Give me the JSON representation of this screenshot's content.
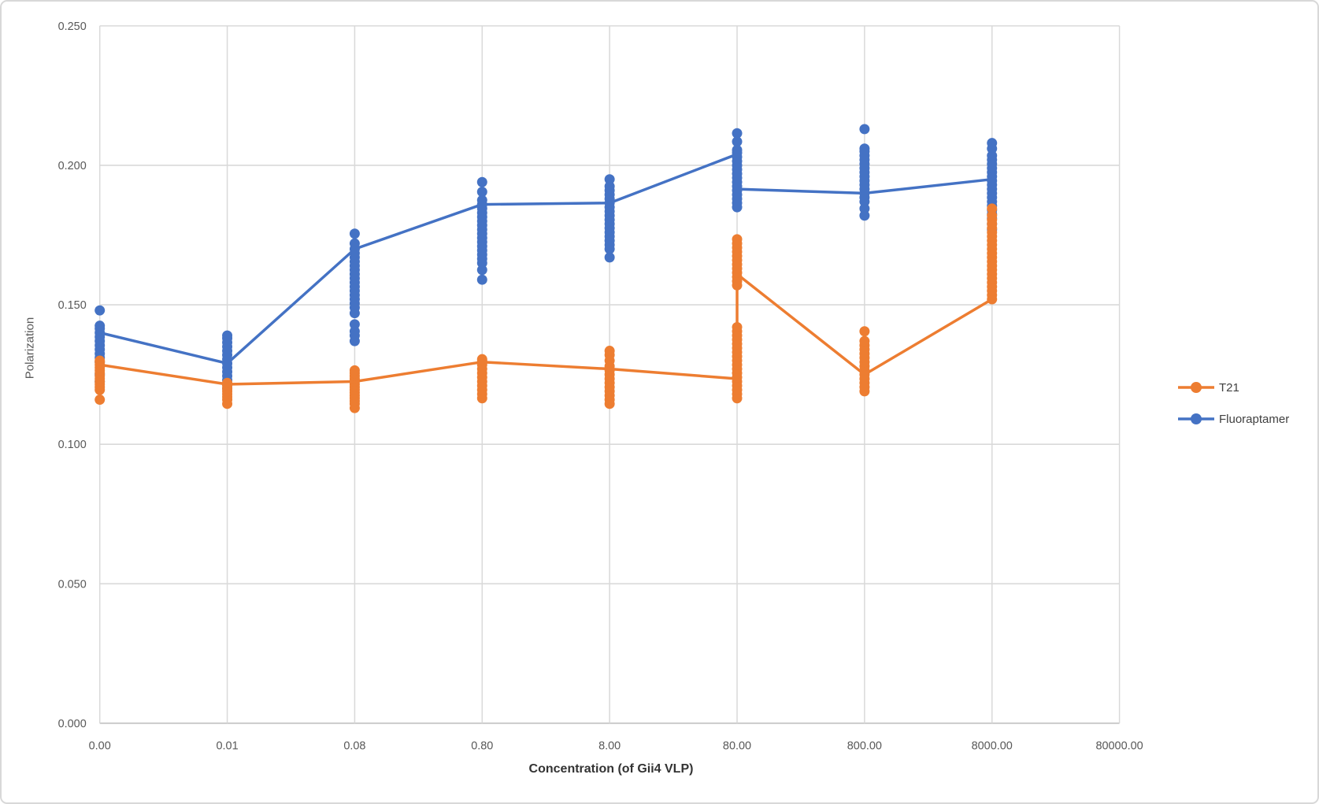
{
  "chart_data": {
    "type": "scatter",
    "xlabel": "Concentration (of Gii4 VLP)",
    "ylabel": "Polarization",
    "x_tick_labels": [
      "0.00",
      "0.01",
      "0.08",
      "0.80",
      "8.00",
      "80.00",
      "800.00",
      "8000.00",
      "80000.00"
    ],
    "y_tick_labels": [
      "0.000",
      "0.050",
      "0.100",
      "0.150",
      "0.200",
      "0.250"
    ],
    "ylim": [
      0,
      0.25
    ],
    "y_tick_step": 0.05,
    "grid": "on",
    "legend_position": "right",
    "colors": {
      "t21": "#ED7D31",
      "fluoraptamer": "#4472C4",
      "gridline": "#D9D9D9",
      "axis_line": "#BFBFBF",
      "tick_text": "#595959"
    },
    "series": [
      {
        "name": "Fluoraptamer",
        "color": "#4472C4",
        "points_by_category": [
          [
            0.1225,
            0.125,
            0.1295,
            0.131,
            0.1325,
            0.134,
            0.1355,
            0.137,
            0.1385,
            0.14,
            0.1415,
            0.1425,
            0.148
          ],
          [
            0.12,
            0.1215,
            0.123,
            0.1245,
            0.126,
            0.1275,
            0.129,
            0.1305,
            0.132,
            0.1335,
            0.135,
            0.1365,
            0.138,
            0.139
          ],
          [
            0.137,
            0.139,
            0.1405,
            0.143,
            0.147,
            0.149,
            0.1505,
            0.152,
            0.1535,
            0.155,
            0.1565,
            0.158,
            0.1595,
            0.161,
            0.1625,
            0.164,
            0.1655,
            0.167,
            0.1685,
            0.17,
            0.172,
            0.1755
          ],
          [
            0.159,
            0.1625,
            0.165,
            0.1665,
            0.168,
            0.1695,
            0.171,
            0.1725,
            0.174,
            0.1755,
            0.177,
            0.1785,
            0.18,
            0.1815,
            0.183,
            0.1845,
            0.186,
            0.1875,
            0.1905,
            0.194
          ],
          [
            0.167,
            0.17,
            0.1715,
            0.173,
            0.1745,
            0.176,
            0.1775,
            0.179,
            0.1805,
            0.182,
            0.1835,
            0.185,
            0.1865,
            0.188,
            0.1895,
            0.191,
            0.1925,
            0.195
          ],
          [
            0.185,
            0.1865,
            0.188,
            0.1895,
            0.191,
            0.1925,
            0.194,
            0.1955,
            0.197,
            0.1985,
            0.2,
            0.2015,
            0.203,
            0.2045,
            0.2055,
            0.2085,
            0.2115
          ],
          [
            0.182,
            0.1845,
            0.187,
            0.1885,
            0.19,
            0.1915,
            0.193,
            0.1945,
            0.196,
            0.1975,
            0.199,
            0.2005,
            0.202,
            0.2035,
            0.205,
            0.206,
            0.213
          ],
          [
            0.177,
            0.179,
            0.181,
            0.1825,
            0.184,
            0.1855,
            0.187,
            0.1885,
            0.19,
            0.1915,
            0.193,
            0.1945,
            0.196,
            0.1975,
            0.199,
            0.2005,
            0.202,
            0.2035,
            0.206,
            0.208
          ]
        ],
        "line_vertices": [
          [
            0,
            0.14
          ],
          [
            1,
            0.129
          ],
          [
            2,
            0.17
          ],
          [
            3,
            0.186
          ],
          [
            4,
            0.1865
          ],
          [
            5,
            0.204
          ],
          [
            5,
            0.1915
          ],
          [
            6,
            0.19
          ],
          [
            7,
            0.195
          ]
        ]
      },
      {
        "name": "T21",
        "color": "#ED7D31",
        "points_by_category": [
          [
            0.116,
            0.1195,
            0.1205,
            0.1215,
            0.1225,
            0.1235,
            0.1245,
            0.1255,
            0.1265,
            0.1275,
            0.1285,
            0.1295,
            0.13
          ],
          [
            0.1145,
            0.116,
            0.117,
            0.118,
            0.119,
            0.12,
            0.121,
            0.1215,
            0.122
          ],
          [
            0.113,
            0.1145,
            0.1155,
            0.1165,
            0.1175,
            0.1185,
            0.1195,
            0.1205,
            0.1215,
            0.1225,
            0.1235,
            0.1245,
            0.1255,
            0.1265
          ],
          [
            0.1165,
            0.118,
            0.1195,
            0.121,
            0.1225,
            0.124,
            0.1255,
            0.127,
            0.1285,
            0.13,
            0.1305
          ],
          [
            0.1145,
            0.116,
            0.1175,
            0.119,
            0.1205,
            0.122,
            0.1235,
            0.125,
            0.1265,
            0.128,
            0.13,
            0.132,
            0.1335
          ],
          [
            0.1165,
            0.118,
            0.1195,
            0.121,
            0.1225,
            0.124,
            0.1255,
            0.127,
            0.1285,
            0.13,
            0.1315,
            0.133,
            0.1345,
            0.136,
            0.1375,
            0.139,
            0.1405,
            0.142,
            0.157,
            0.1585,
            0.16,
            0.1615,
            0.163,
            0.1645,
            0.166,
            0.1675,
            0.169,
            0.1705,
            0.172,
            0.1735
          ],
          [
            0.119,
            0.1205,
            0.122,
            0.1235,
            0.125,
            0.1265,
            0.128,
            0.1295,
            0.131,
            0.1325,
            0.134,
            0.1355,
            0.137,
            0.1405
          ],
          [
            0.152,
            0.1535,
            0.155,
            0.1565,
            0.158,
            0.1595,
            0.161,
            0.1625,
            0.164,
            0.1655,
            0.167,
            0.1685,
            0.17,
            0.1715,
            0.173,
            0.1745,
            0.176,
            0.1775,
            0.179,
            0.1805,
            0.182,
            0.1845
          ]
        ],
        "line_vertices": [
          [
            0,
            0.1285
          ],
          [
            1,
            0.1215
          ],
          [
            2,
            0.1225
          ],
          [
            3,
            0.1295
          ],
          [
            4,
            0.127
          ],
          [
            5,
            0.1235
          ],
          [
            5,
            0.161
          ],
          [
            6,
            0.125
          ],
          [
            7,
            0.152
          ],
          [
            7,
            0.1845
          ]
        ]
      }
    ],
    "legend": [
      {
        "name": "T21",
        "color": "#ED7D31"
      },
      {
        "name": "Fluoraptamer",
        "color": "#4472C4"
      }
    ]
  }
}
